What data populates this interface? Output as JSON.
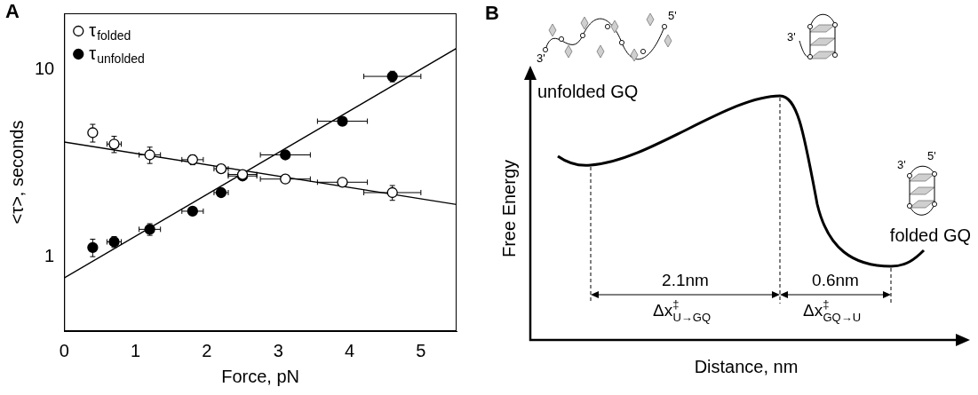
{
  "chart_data": {
    "type": "scatter",
    "panel_label": "A",
    "x_label": "Force, pN",
    "y_label": "<τ>, seconds",
    "xlim": [
      0,
      5.5
    ],
    "xticks": [
      0,
      1,
      2,
      3,
      4,
      5
    ],
    "ylim": [
      0.4,
      20
    ],
    "yticks": [
      1,
      10
    ],
    "log": "y",
    "grid": false,
    "legend": "top-left",
    "series": [
      {
        "name": "τfolded",
        "color": "#000000",
        "marker": "circle_open",
        "x": [
          0.4,
          0.7,
          1.2,
          1.8,
          2.2,
          2.5,
          3.1,
          3.9,
          4.6
        ],
        "values": [
          4.6,
          4.0,
          3.5,
          3.3,
          2.95,
          2.75,
          2.6,
          2.5,
          2.2
        ],
        "x_err": [
          0.05,
          0.1,
          0.15,
          0.15,
          0.1,
          0.2,
          0.35,
          0.35,
          0.4
        ],
        "y_err": [
          0.5,
          0.4,
          0.35,
          0.2,
          0.1,
          0.1,
          0.08,
          0.08,
          0.2
        ]
      },
      {
        "name": "τunfolded",
        "color": "#000000",
        "marker": "circle",
        "x": [
          0.4,
          0.7,
          1.2,
          1.8,
          2.2,
          2.5,
          3.1,
          3.9,
          4.6
        ],
        "values": [
          1.12,
          1.2,
          1.4,
          1.75,
          2.2,
          2.7,
          3.5,
          5.3,
          9.2
        ],
        "x_err": [
          0.05,
          0.1,
          0.15,
          0.15,
          0.1,
          0.2,
          0.35,
          0.35,
          0.4
        ],
        "y_err": [
          0.12,
          0.08,
          0.1,
          0.08,
          0.05,
          0.1,
          0.1,
          0.2,
          0.6
        ]
      }
    ],
    "fits": [
      {
        "color": "#000000",
        "line_style": "solid",
        "x": [
          0,
          5.5
        ],
        "values": [
          4.1,
          1.9
        ]
      },
      {
        "color": "#000000",
        "line_style": "solid",
        "x": [
          0,
          5.5
        ],
        "values": [
          0.77,
          13
        ]
      }
    ]
  },
  "diagram": {
    "panel_label": "B",
    "y_axis_label": "Free Energy",
    "x_axis_label": "Distance, nm",
    "states": {
      "unfolded": "unfolded GQ",
      "folded": "folded GQ"
    },
    "distances": [
      {
        "label": "2.1nm",
        "symbol": "Δx",
        "sup": "‡",
        "sub": "U→GQ"
      },
      {
        "label": "0.6nm",
        "symbol": "Δx",
        "sup": "‡",
        "sub": "GQ→U"
      }
    ],
    "cartoon_labels": {
      "unfolded": [
        "3'",
        "5'"
      ],
      "transition": [
        "3'"
      ],
      "folded": [
        "5'",
        "3'"
      ]
    }
  }
}
